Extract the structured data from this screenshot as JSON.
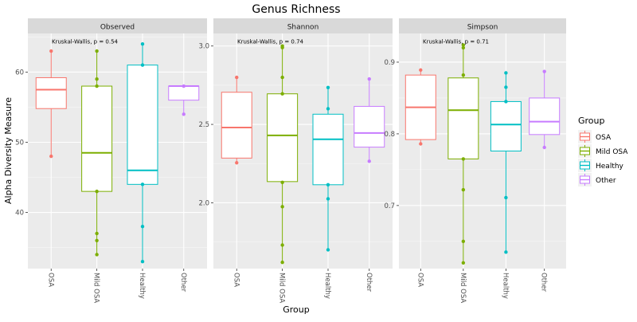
{
  "chart_data": {
    "type": "box",
    "title": "Genus Richness",
    "xlabel": "Group",
    "ylabel": "Alpha Diversity Measure",
    "legend": {
      "title": "Group",
      "position": "right",
      "entries": [
        "OSA",
        "Mild OSA",
        "Healthy",
        "Other"
      ]
    },
    "categories": [
      "OSA",
      "Mild OSA",
      "Healthy",
      "Other"
    ],
    "colors": {
      "OSA": "#F8766D",
      "Mild OSA": "#7CAE00",
      "Healthy": "#00BFC4",
      "Other": "#C77CFF"
    },
    "grid": true,
    "panels": [
      {
        "title": "Observed",
        "annotation": "Kruskal-Wallis, p = 0.54",
        "ylim": [
          32,
          65.5
        ],
        "yticks": [
          40,
          50,
          60
        ],
        "ytick_labels": [
          "40",
          "50",
          "60"
        ],
        "boxes": [
          {
            "group": "OSA",
            "q1": 54.8,
            "median": 57.5,
            "q3": 59.2,
            "whisker_low": 48,
            "whisker_high": 63
          },
          {
            "group": "Mild OSA",
            "q1": 43,
            "median": 48.5,
            "q3": 58,
            "whisker_low": 34,
            "whisker_high": 63
          },
          {
            "group": "Healthy",
            "q1": 44,
            "median": 46,
            "q3": 61,
            "whisker_low": 33,
            "whisker_high": 64
          },
          {
            "group": "Other",
            "q1": 56,
            "median": 58,
            "q3": 58,
            "whisker_low": 54,
            "whisker_high": 58
          }
        ],
        "points": [
          {
            "group": "OSA",
            "values": [
              63,
              48
            ]
          },
          {
            "group": "Mild OSA",
            "values": [
              63,
              59,
              58,
              43,
              37,
              36,
              34
            ]
          },
          {
            "group": "Healthy",
            "values": [
              64,
              61,
              44,
              38,
              33
            ]
          },
          {
            "group": "Other",
            "values": [
              58,
              54
            ]
          }
        ]
      },
      {
        "title": "Shannon",
        "annotation": "Kruskal-Wallis, p = 0.74",
        "ylim": [
          1.58,
          3.08
        ],
        "yticks": [
          2.0,
          2.5,
          3.0
        ],
        "ytick_labels": [
          "2.0",
          "2.5",
          "3.0"
        ],
        "boxes": [
          {
            "group": "OSA",
            "q1": 2.285,
            "median": 2.48,
            "q3": 2.705,
            "whisker_low": 2.255,
            "whisker_high": 2.8
          },
          {
            "group": "Mild OSA",
            "q1": 2.135,
            "median": 2.43,
            "q3": 2.695,
            "whisker_low": 1.62,
            "whisker_high": 3.0
          },
          {
            "group": "Healthy",
            "q1": 2.115,
            "median": 2.405,
            "q3": 2.565,
            "whisker_low": 1.7,
            "whisker_high": 2.735
          },
          {
            "group": "Other",
            "q1": 2.355,
            "median": 2.445,
            "q3": 2.615,
            "whisker_low": 2.265,
            "whisker_high": 2.79
          }
        ],
        "points": [
          {
            "group": "OSA",
            "values": [
              2.8,
              2.255
            ]
          },
          {
            "group": "Mild OSA",
            "values": [
              3.0,
              2.99,
              2.8,
              2.695,
              2.13,
              1.975,
              1.73,
              1.62
            ]
          },
          {
            "group": "Healthy",
            "values": [
              2.735,
              2.6,
              2.115,
              2.025,
              1.7
            ]
          },
          {
            "group": "Other",
            "values": [
              2.79,
              2.265
            ]
          }
        ]
      },
      {
        "title": "Simpson",
        "annotation": "Kruskal-Wallis, p = 0.71",
        "ylim": [
          0.612,
          0.94
        ],
        "yticks": [
          0.7,
          0.8,
          0.9
        ],
        "ytick_labels": [
          "0.7",
          "0.8",
          "0.9"
        ],
        "boxes": [
          {
            "group": "OSA",
            "q1": 0.792,
            "median": 0.837,
            "q3": 0.882,
            "whisker_low": 0.786,
            "whisker_high": 0.889
          },
          {
            "group": "Mild OSA",
            "q1": 0.765,
            "median": 0.833,
            "q3": 0.878,
            "whisker_low": 0.62,
            "whisker_high": 0.924
          },
          {
            "group": "Healthy",
            "q1": 0.776,
            "median": 0.813,
            "q3": 0.845,
            "whisker_low": 0.635,
            "whisker_high": 0.885
          },
          {
            "group": "Other",
            "q1": 0.799,
            "median": 0.817,
            "q3": 0.85,
            "whisker_low": 0.781,
            "whisker_high": 0.887
          }
        ],
        "points": [
          {
            "group": "OSA",
            "values": [
              0.889,
              0.786
            ]
          },
          {
            "group": "Mild OSA",
            "values": [
              0.924,
              0.92,
              0.882,
              0.765,
              0.722,
              0.65,
              0.62
            ]
          },
          {
            "group": "Healthy",
            "values": [
              0.885,
              0.865,
              0.845,
              0.711,
              0.635
            ]
          },
          {
            "group": "Other",
            "values": [
              0.887,
              0.781
            ]
          }
        ]
      }
    ]
  }
}
